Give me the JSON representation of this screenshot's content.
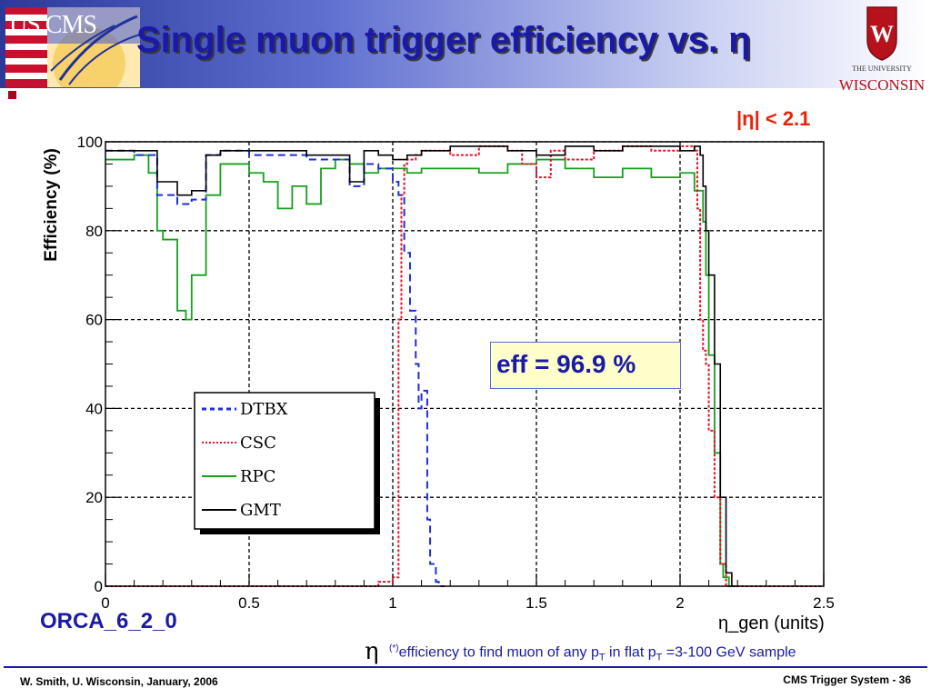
{
  "slide": {
    "title": "Single muon trigger efficiency vs. η",
    "logo_left_text": "US CMS",
    "logo_right_line1": "THE UNIVERSITY",
    "logo_right_line2": "WISCONSIN",
    "eta_cut": "|η| < 2.1",
    "eff_box": "eff = 96.9 %",
    "orca_label": "ORCA_6_2_0",
    "footnote_eta": "η",
    "footnote_sup": "(*)",
    "footnote_main": "efficiency to find muon of any p",
    "footnote_sub1": "T",
    "footnote_mid": " in flat p",
    "footnote_sub2": "T",
    "footnote_end": " =3-100 GeV sample",
    "footer_left": "W. Smith, U. Wisconsin, January, 2006",
    "footer_right": "CMS Trigger System -  36"
  },
  "colors": {
    "title": "#1a1aa6",
    "eta_cut": "#e8220c",
    "dtbx": "#1f2fd6",
    "csc": "#e8132b",
    "rpc": "#16a01e",
    "gmt": "#000000",
    "magenta": "#d000d0"
  },
  "chart_data": {
    "type": "line",
    "xlabel": "η_gen (units)",
    "ylabel": "Efficiency (%)",
    "xlim": [
      0,
      2.5
    ],
    "ylim": [
      0,
      100
    ],
    "x_ticks": [
      "0",
      "0.5",
      "1",
      "1.5",
      "2",
      "2.5"
    ],
    "y_ticks": [
      "0",
      "20",
      "40",
      "60",
      "80",
      "100"
    ],
    "grid": true,
    "legend_position": "bottom-left",
    "series": [
      {
        "name": "DTBX",
        "style": "dashed",
        "x": [
          0.0,
          0.1,
          0.18,
          0.25,
          0.3,
          0.35,
          0.4,
          0.5,
          0.6,
          0.7,
          0.8,
          0.85,
          0.9,
          0.95,
          1.0,
          1.02,
          1.04,
          1.06,
          1.08,
          1.09,
          1.1,
          1.12,
          1.13,
          1.15,
          1.16
        ],
        "values": [
          98,
          97,
          88,
          86,
          87,
          97,
          98,
          97,
          97,
          96,
          96,
          90,
          95,
          94,
          91,
          88,
          75,
          62,
          50,
          40,
          44,
          15,
          5,
          1,
          0
        ]
      },
      {
        "name": "CSC",
        "style": "dotted",
        "x": [
          0.0,
          0.8,
          0.95,
          1.0,
          1.02,
          1.03,
          1.04,
          1.05,
          1.08,
          1.1,
          1.2,
          1.3,
          1.4,
          1.45,
          1.5,
          1.55,
          1.6,
          1.7,
          1.8,
          1.9,
          2.0,
          2.05,
          2.06,
          2.07,
          2.08,
          2.09,
          2.1,
          2.12,
          2.14,
          2.16,
          2.2,
          2.5
        ],
        "values": [
          0,
          0,
          1,
          2,
          60,
          88,
          95,
          96,
          97,
          98,
          97,
          99,
          98,
          95,
          92,
          98,
          96,
          98,
          99,
          98,
          99,
          98,
          85,
          60,
          53,
          50,
          35,
          20,
          5,
          0,
          0,
          0
        ]
      },
      {
        "name": "RPC",
        "style": "solid",
        "x": [
          0.0,
          0.1,
          0.15,
          0.18,
          0.2,
          0.25,
          0.28,
          0.3,
          0.35,
          0.4,
          0.5,
          0.55,
          0.6,
          0.65,
          0.7,
          0.75,
          0.8,
          0.85,
          0.9,
          0.95,
          1.0,
          1.05,
          1.1,
          1.2,
          1.3,
          1.4,
          1.5,
          1.6,
          1.7,
          1.8,
          1.9,
          2.0,
          2.05,
          2.08,
          2.09,
          2.1,
          2.12,
          2.14,
          2.15,
          2.17
        ],
        "values": [
          96,
          97,
          93,
          80,
          78,
          62,
          60,
          70,
          88,
          95,
          93,
          91,
          85,
          90,
          86,
          94,
          96,
          95,
          93,
          94,
          94,
          93,
          94,
          94,
          93,
          95,
          96,
          94,
          92,
          94,
          92,
          93,
          89,
          82,
          70,
          52,
          30,
          5,
          2,
          0
        ]
      },
      {
        "name": "GMT",
        "style": "solid",
        "x": [
          0.0,
          0.1,
          0.18,
          0.25,
          0.3,
          0.35,
          0.4,
          0.5,
          0.6,
          0.7,
          0.8,
          0.85,
          0.9,
          0.95,
          1.0,
          1.05,
          1.1,
          1.2,
          1.3,
          1.4,
          1.5,
          1.6,
          1.7,
          1.8,
          1.9,
          2.0,
          2.05,
          2.07,
          2.08,
          2.09,
          2.1,
          2.12,
          2.14,
          2.16,
          2.18
        ],
        "values": [
          98,
          98,
          91,
          88,
          89,
          97,
          98,
          98,
          98,
          97,
          97,
          91,
          98,
          97,
          96,
          97,
          98,
          99,
          99,
          98,
          97,
          99,
          98,
          99,
          99,
          98,
          99,
          97,
          90,
          80,
          70,
          50,
          20,
          3,
          0
        ]
      }
    ]
  }
}
